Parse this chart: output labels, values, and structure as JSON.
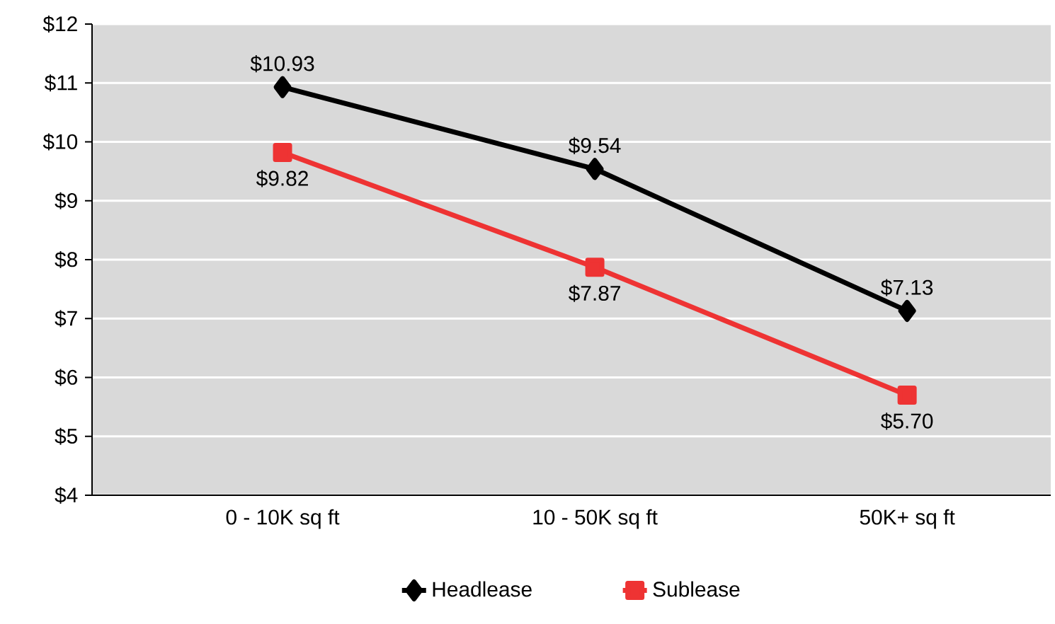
{
  "chart_data": {
    "type": "line",
    "categories": [
      "0 - 10K sq ft",
      "10 - 50K sq ft",
      "50K+ sq ft"
    ],
    "series": [
      {
        "name": "Headlease",
        "color": "#000000",
        "marker": "diamond",
        "values": [
          10.93,
          9.54,
          7.13
        ],
        "value_labels": [
          "$10.93",
          "$9.54",
          "$7.13"
        ]
      },
      {
        "name": "Sublease",
        "color": "#ee3333",
        "marker": "square",
        "values": [
          9.82,
          7.87,
          5.7
        ],
        "value_labels": [
          "$9.82",
          "$7.87",
          "$5.70"
        ]
      }
    ],
    "ylim": [
      4,
      12
    ],
    "yticks": [
      {
        "value": 4,
        "label": "$4"
      },
      {
        "value": 5,
        "label": "$5"
      },
      {
        "value": 6,
        "label": "$6"
      },
      {
        "value": 7,
        "label": "$7"
      },
      {
        "value": 8,
        "label": "$8"
      },
      {
        "value": 9,
        "label": "$9"
      },
      {
        "value": 10,
        "label": "$10"
      },
      {
        "value": 11,
        "label": "$11"
      },
      {
        "value": 12,
        "label": "$12"
      }
    ],
    "grid": "y",
    "legend": "bottom",
    "line_style": "solid"
  }
}
